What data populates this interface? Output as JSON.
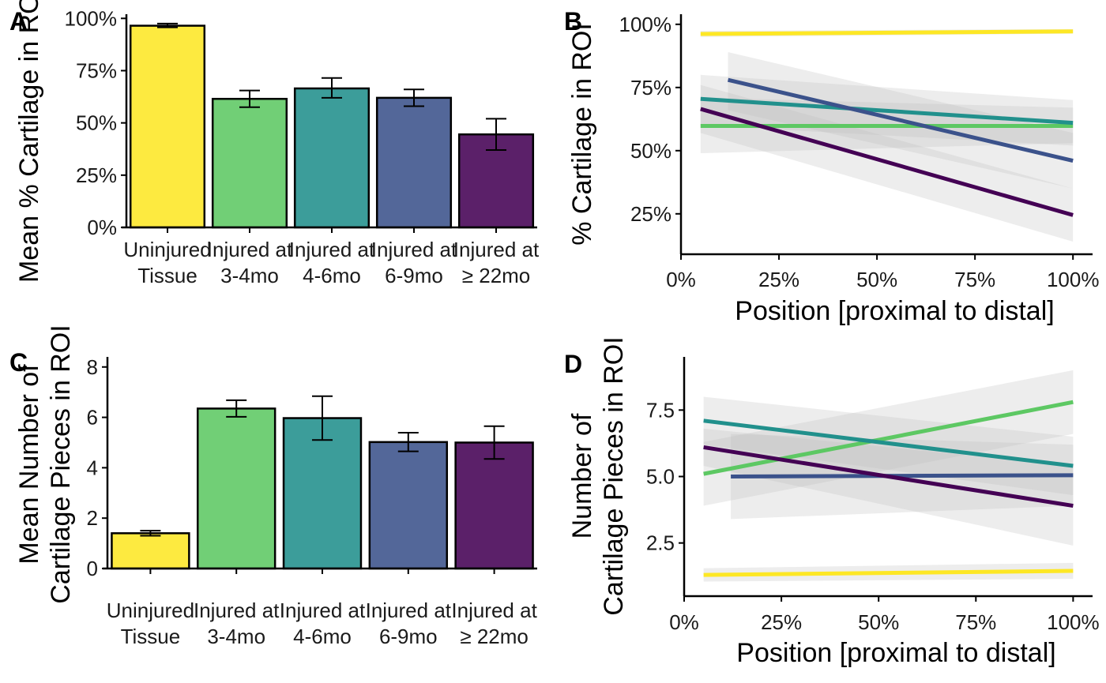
{
  "chart_data": [
    {
      "panel": "A",
      "type": "bar",
      "xlabel": "",
      "ylabel": "Mean % Cartilage in ROI",
      "categories": [
        [
          "Uninjured",
          "Tissue"
        ],
        [
          "Injured at",
          "3-4mo"
        ],
        [
          "Injured at",
          "4-6mo"
        ],
        [
          "Injured at",
          "6-9mo"
        ],
        [
          "Injured at",
          "≥ 22mo"
        ]
      ],
      "values": [
        0.965,
        0.615,
        0.665,
        0.62,
        0.445
      ],
      "err_low": [
        0.957,
        0.575,
        0.62,
        0.58,
        0.37
      ],
      "err_high": [
        0.975,
        0.655,
        0.715,
        0.66,
        0.52
      ],
      "ylim": [
        0,
        1.02
      ],
      "yticks": [
        0,
        0.25,
        0.5,
        0.75,
        1.0
      ],
      "ytick_labels": [
        "0%",
        "25%",
        "50%",
        "75%",
        "100%"
      ],
      "colors": [
        "#FDE725",
        "#5DC863",
        "#21908C",
        "#3B528B",
        "#440154"
      ],
      "bar_opacity": 0.88
    },
    {
      "panel": "B",
      "type": "line",
      "xlabel": "Position [proximal to distal]",
      "ylabel": "% Cartilage in ROI",
      "xlim": [
        0,
        1.05
      ],
      "ylim": [
        0.09,
        1.04
      ],
      "xticks": [
        0,
        0.25,
        0.5,
        0.75,
        1.0
      ],
      "xtick_labels": [
        "0%",
        "25%",
        "50%",
        "75%",
        "100%"
      ],
      "yticks": [
        0.25,
        0.5,
        0.75,
        1.0
      ],
      "ytick_labels": [
        "25%",
        "50%",
        "75%",
        "100%"
      ],
      "series": [
        {
          "color": "#FDE725",
          "x": [
            0.05,
            1.0
          ],
          "y": [
            0.962,
            0.972
          ],
          "lo": [
            0.95,
            0.963
          ],
          "hi": [
            0.974,
            0.981
          ]
        },
        {
          "color": "#5DC863",
          "x": [
            0.05,
            1.0
          ],
          "y": [
            0.598,
            0.598
          ],
          "lo": [
            0.49,
            0.53
          ],
          "hi": [
            0.71,
            0.67
          ]
        },
        {
          "color": "#21908C",
          "x": [
            0.05,
            1.0
          ],
          "y": [
            0.705,
            0.61
          ],
          "lo": [
            0.6,
            0.52
          ],
          "hi": [
            0.8,
            0.7
          ]
        },
        {
          "color": "#3B528B",
          "x": [
            0.12,
            1.0
          ],
          "y": [
            0.78,
            0.46
          ],
          "lo": [
            0.66,
            0.35
          ],
          "hi": [
            0.89,
            0.57
          ]
        },
        {
          "color": "#440154",
          "x": [
            0.05,
            1.0
          ],
          "y": [
            0.665,
            0.245
          ],
          "lo": [
            0.57,
            0.14
          ],
          "hi": [
            0.76,
            0.35
          ]
        }
      ]
    },
    {
      "panel": "C",
      "type": "bar",
      "xlabel": "",
      "ylabel": "Mean Number of Cartilage Pieces in ROI",
      "categories": [
        [
          "Uninjured",
          "Tissue"
        ],
        [
          "Injured at",
          "3-4mo"
        ],
        [
          "Injured at",
          "4-6mo"
        ],
        [
          "Injured at",
          "6-9mo"
        ],
        [
          "Injured at",
          "≥ 22mo"
        ]
      ],
      "values": [
        1.4,
        6.35,
        5.97,
        5.02,
        5.0
      ],
      "err_low": [
        1.3,
        6.02,
        5.1,
        4.65,
        4.35
      ],
      "err_high": [
        1.5,
        6.68,
        6.84,
        5.39,
        5.65
      ],
      "ylim": [
        0,
        8.4
      ],
      "yticks": [
        0,
        2,
        4,
        6,
        8
      ],
      "ytick_labels": [
        "0",
        "2",
        "4",
        "6",
        "8"
      ],
      "colors": [
        "#FDE725",
        "#5DC863",
        "#21908C",
        "#3B528B",
        "#440154"
      ],
      "bar_opacity": 0.88
    },
    {
      "panel": "D",
      "type": "line",
      "xlabel": "Position [proximal to distal]",
      "ylabel": "Number of Cartilage Pieces in ROI",
      "xlim": [
        0,
        1.05
      ],
      "ylim": [
        0.5,
        9.5
      ],
      "xticks": [
        0,
        0.25,
        0.5,
        0.75,
        1.0
      ],
      "xtick_labels": [
        "0%",
        "25%",
        "50%",
        "75%",
        "100%"
      ],
      "yticks": [
        2.5,
        5.0,
        7.5
      ],
      "ytick_labels": [
        "2.5",
        "5.0",
        "7.5"
      ],
      "series": [
        {
          "color": "#FDE725",
          "x": [
            0.05,
            1.0
          ],
          "y": [
            1.3,
            1.45
          ],
          "lo": [
            1.05,
            1.15
          ],
          "hi": [
            1.55,
            1.75
          ]
        },
        {
          "color": "#5DC863",
          "x": [
            0.05,
            1.0
          ],
          "y": [
            5.1,
            7.8
          ],
          "lo": [
            3.9,
            6.6
          ],
          "hi": [
            6.3,
            9.0
          ]
        },
        {
          "color": "#21908C",
          "x": [
            0.05,
            1.0
          ],
          "y": [
            7.1,
            5.4
          ],
          "lo": [
            6.2,
            4.3
          ],
          "hi": [
            8.0,
            6.5
          ]
        },
        {
          "color": "#3B528B",
          "x": [
            0.12,
            1.0
          ],
          "y": [
            5.0,
            5.05
          ],
          "lo": [
            3.4,
            3.9
          ],
          "hi": [
            6.6,
            6.2
          ]
        },
        {
          "color": "#440154",
          "x": [
            0.05,
            1.0
          ],
          "y": [
            6.1,
            3.9
          ],
          "lo": [
            5.4,
            2.4
          ],
          "hi": [
            6.8,
            5.4
          ]
        }
      ]
    }
  ]
}
